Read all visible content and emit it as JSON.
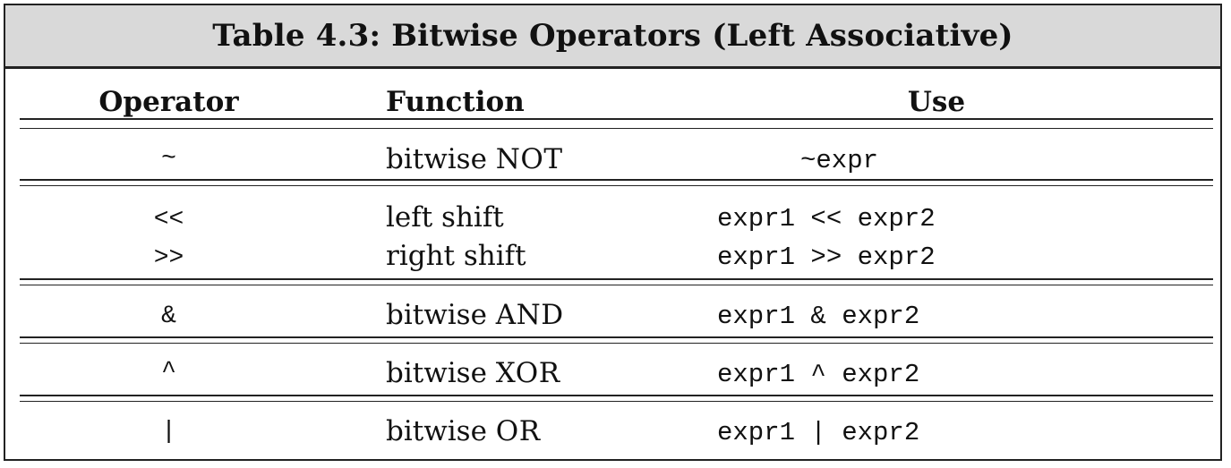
{
  "table": {
    "title": "Table 4.3: Bitwise Operators (Left Associative)",
    "headers": {
      "operator": "Operator",
      "function": "Function",
      "use": "Use"
    },
    "rows": [
      {
        "operator": "~",
        "function_prefix": "bitwise ",
        "function_sc": "NOT",
        "use": "~expr"
      },
      {
        "operator": "<<",
        "function_prefix": "left shift",
        "function_sc": "",
        "use": "expr1 << expr2"
      },
      {
        "operator": ">>",
        "function_prefix": "right shift",
        "function_sc": "",
        "use": "expr1 >> expr2"
      },
      {
        "operator": "&",
        "function_prefix": "bitwise ",
        "function_sc": "AND",
        "use": "expr1 & expr2"
      },
      {
        "operator": "^",
        "function_prefix": "bitwise ",
        "function_sc": "XOR",
        "use": "expr1 ^ expr2"
      },
      {
        "operator": "|",
        "function_prefix": "bitwise ",
        "function_sc": "OR",
        "use": "expr1 | expr2"
      }
    ]
  }
}
